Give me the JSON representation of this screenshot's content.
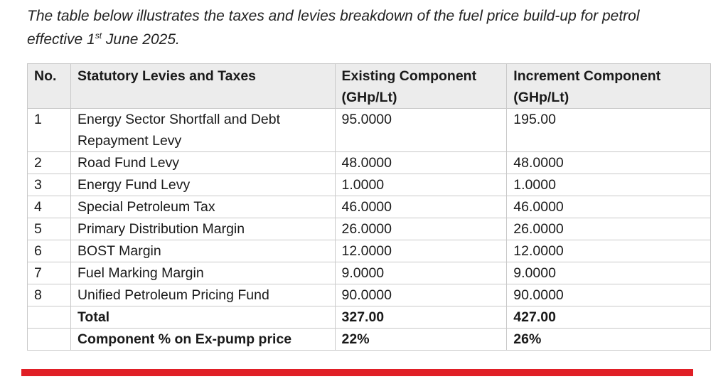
{
  "intro": {
    "line1": "The table below illustrates the taxes and levies breakdown of the fuel price build-up for petrol",
    "line2_prefix": "effective 1",
    "line2_sup": "st",
    "line2_suffix": " June 2025."
  },
  "table": {
    "headers": {
      "no": "No.",
      "name": "Statutory Levies and Taxes",
      "existing_line1": "Existing Component",
      "existing_line2": "(GHp/Lt)",
      "increment_line1": "Increment Component",
      "increment_line2": "(GHp/Lt)"
    },
    "rows": [
      {
        "no": "1",
        "name_line1": "Energy Sector Shortfall and Debt",
        "name_line2": "Repayment Levy",
        "existing": "95.0000",
        "increment": "195.00"
      },
      {
        "no": "2",
        "name": "Road Fund Levy",
        "existing": "48.0000",
        "increment": "48.0000"
      },
      {
        "no": "3",
        "name": "Energy Fund Levy",
        "existing": "1.0000",
        "increment": "1.0000"
      },
      {
        "no": "4",
        "name": "Special Petroleum Tax",
        "existing": "46.0000",
        "increment": "46.0000"
      },
      {
        "no": "5",
        "name": "Primary Distribution Margin",
        "existing": "26.0000",
        "increment": "26.0000"
      },
      {
        "no": "6",
        "name": "BOST Margin",
        "existing": "12.0000",
        "increment": "12.0000"
      },
      {
        "no": "7",
        "name": "Fuel Marking Margin",
        "existing": "9.0000",
        "increment": "9.0000"
      },
      {
        "no": "8",
        "name": "Unified Petroleum Pricing Fund",
        "existing": "90.0000",
        "increment": "90.0000"
      }
    ],
    "total": {
      "label": "Total",
      "existing": "327.00",
      "increment": "427.00"
    },
    "percent": {
      "label": "Component % on Ex-pump price",
      "existing": "22%",
      "increment": "26%"
    }
  },
  "colors": {
    "accent_bar": "#e01f26",
    "header_bg": "#ececec",
    "border": "#c9c9c9"
  }
}
